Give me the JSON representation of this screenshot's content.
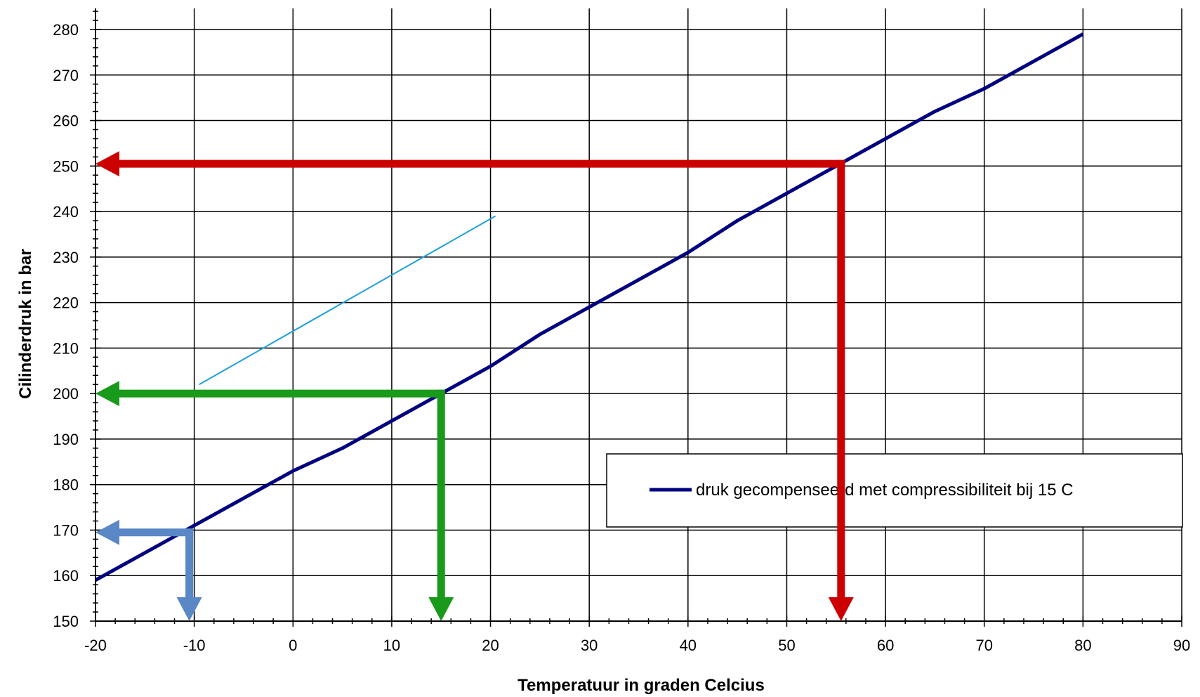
{
  "chart_data": {
    "type": "line",
    "title": "",
    "xlabel": "Temperatuur in graden Celcius",
    "ylabel": "Cilinderdruk in bar",
    "xlim": [
      -20,
      90
    ],
    "ylim": [
      150,
      285
    ],
    "xticks": [
      -20,
      -10,
      0,
      10,
      20,
      30,
      40,
      50,
      60,
      70,
      80,
      90
    ],
    "yticks": [
      150,
      160,
      170,
      180,
      190,
      200,
      210,
      220,
      230,
      240,
      250,
      260,
      270,
      280
    ],
    "grid": true,
    "legend_position": "center-right",
    "series": [
      {
        "name": "druk gecompenseerd met compressibiliteit bij 15 C",
        "color": "#000080",
        "x": [
          -20,
          -15,
          -10,
          -5,
          0,
          5,
          10,
          15,
          20,
          25,
          30,
          35,
          40,
          45,
          50,
          55,
          60,
          65,
          70,
          75,
          80
        ],
        "y": [
          159,
          165,
          171,
          177,
          183,
          188,
          194,
          200,
          206,
          213,
          219,
          225,
          231,
          238,
          244,
          250,
          256,
          262,
          267,
          273,
          279
        ]
      }
    ],
    "reference_line": {
      "color": "#1ea0dc",
      "x": [
        -9.5,
        20.5
      ],
      "y": [
        202,
        239
      ]
    },
    "annotation_arrows": [
      {
        "color": "#5a87c5",
        "x": -10.5,
        "y": 169.5
      },
      {
        "color": "#1a9a1a",
        "x": 15,
        "y": 200
      },
      {
        "color": "#cc0000",
        "x": 55.5,
        "y": 250.5
      }
    ]
  }
}
